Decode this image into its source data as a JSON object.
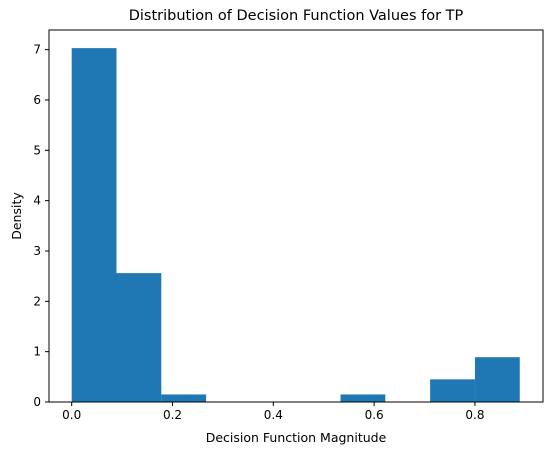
{
  "chart_data": {
    "type": "bar",
    "title": "Distribution of Decision Function Values for TP",
    "xlabel": "Decision Function Magnitude",
    "ylabel": "Density",
    "xlim": [
      -0.045,
      0.935
    ],
    "ylim": [
      0,
      7.39
    ],
    "xticks": [
      0.0,
      0.2,
      0.4,
      0.6,
      0.8
    ],
    "xtick_labels": [
      "0.0",
      "0.2",
      "0.4",
      "0.6",
      "0.8"
    ],
    "yticks": [
      0,
      1,
      2,
      3,
      4,
      5,
      6,
      7
    ],
    "ytick_labels": [
      "0",
      "1",
      "2",
      "3",
      "4",
      "5",
      "6",
      "7"
    ],
    "bin_edges": [
      0.0,
      0.0889,
      0.1778,
      0.2667,
      0.3556,
      0.4444,
      0.5333,
      0.6222,
      0.7111,
      0.8,
      0.8889
    ],
    "values": [
      7.03,
      2.56,
      0.15,
      0.0,
      0.0,
      0.0,
      0.15,
      0.0,
      0.45,
      0.89
    ],
    "bar_color": "#1f77b4",
    "grid": false,
    "legend": "none"
  }
}
